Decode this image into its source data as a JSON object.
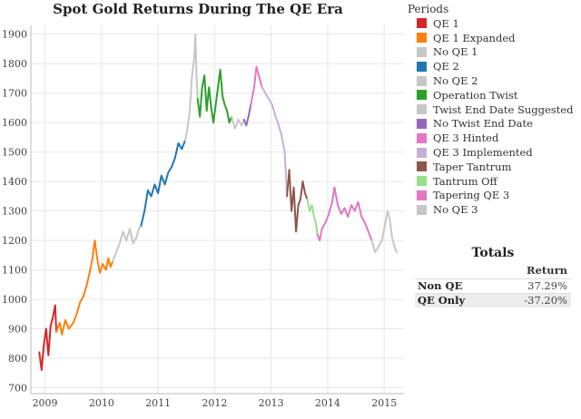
{
  "chart_data": {
    "type": "line",
    "title": "Spot Gold Returns During The QE Era",
    "xlabel": "",
    "ylabel": "",
    "x_ticks": [
      "2009",
      "2010",
      "2011",
      "2012",
      "2013",
      "2014",
      "2015"
    ],
    "y_ticks": [
      "700",
      "800",
      "900",
      "1000",
      "1100",
      "1200",
      "1300",
      "1400",
      "1500",
      "1600",
      "1700",
      "1800",
      "1900"
    ],
    "xlim": [
      2008.75,
      2015.35
    ],
    "ylim": [
      680,
      1930
    ],
    "grid": true,
    "legend_position": "right",
    "series": [
      {
        "name": "QE 1",
        "color": "#d62728",
        "points": [
          [
            2008.9,
            820
          ],
          [
            2008.94,
            760
          ],
          [
            2008.98,
            845
          ],
          [
            2009.02,
            900
          ],
          [
            2009.06,
            810
          ],
          [
            2009.1,
            910
          ],
          [
            2009.14,
            940
          ],
          [
            2009.18,
            980
          ],
          [
            2009.2,
            890
          ]
        ]
      },
      {
        "name": "QE 1 Expanded",
        "color": "#ff7f0e",
        "points": [
          [
            2009.2,
            890
          ],
          [
            2009.26,
            920
          ],
          [
            2009.3,
            880
          ],
          [
            2009.36,
            930
          ],
          [
            2009.42,
            900
          ],
          [
            2009.5,
            920
          ],
          [
            2009.56,
            950
          ],
          [
            2009.62,
            990
          ],
          [
            2009.68,
            1010
          ],
          [
            2009.74,
            1050
          ],
          [
            2009.8,
            1100
          ],
          [
            2009.84,
            1140
          ],
          [
            2009.88,
            1200
          ],
          [
            2009.93,
            1130
          ],
          [
            2009.97,
            1090
          ],
          [
            2010.02,
            1120
          ],
          [
            2010.08,
            1100
          ],
          [
            2010.12,
            1140
          ],
          [
            2010.16,
            1110
          ],
          [
            2010.2,
            1130
          ]
        ]
      },
      {
        "name": "No QE 1",
        "color": "#c7c7c7",
        "points": [
          [
            2010.2,
            1130
          ],
          [
            2010.26,
            1160
          ],
          [
            2010.32,
            1190
          ],
          [
            2010.38,
            1230
          ],
          [
            2010.44,
            1200
          ],
          [
            2010.5,
            1240
          ],
          [
            2010.56,
            1190
          ],
          [
            2010.62,
            1210
          ],
          [
            2010.66,
            1240
          ],
          [
            2010.7,
            1250
          ]
        ]
      },
      {
        "name": "QE 2",
        "color": "#1f77b4",
        "points": [
          [
            2010.7,
            1250
          ],
          [
            2010.76,
            1300
          ],
          [
            2010.82,
            1370
          ],
          [
            2010.88,
            1350
          ],
          [
            2010.94,
            1390
          ],
          [
            2011.0,
            1360
          ],
          [
            2011.06,
            1420
          ],
          [
            2011.12,
            1390
          ],
          [
            2011.18,
            1430
          ],
          [
            2011.24,
            1450
          ],
          [
            2011.3,
            1480
          ],
          [
            2011.36,
            1530
          ],
          [
            2011.42,
            1510
          ],
          [
            2011.48,
            1540
          ]
        ]
      },
      {
        "name": "No QE 2",
        "color": "#c7c7c7",
        "points": [
          [
            2011.48,
            1540
          ],
          [
            2011.52,
            1580
          ],
          [
            2011.56,
            1640
          ],
          [
            2011.6,
            1760
          ],
          [
            2011.64,
            1820
          ],
          [
            2011.66,
            1900
          ],
          [
            2011.68,
            1760
          ],
          [
            2011.7,
            1680
          ]
        ]
      },
      {
        "name": "Operation Twist",
        "color": "#2ca02c",
        "points": [
          [
            2011.7,
            1680
          ],
          [
            2011.74,
            1620
          ],
          [
            2011.78,
            1720
          ],
          [
            2011.82,
            1760
          ],
          [
            2011.86,
            1640
          ],
          [
            2011.9,
            1720
          ],
          [
            2011.94,
            1650
          ],
          [
            2011.98,
            1600
          ],
          [
            2012.02,
            1660
          ],
          [
            2012.06,
            1720
          ],
          [
            2012.1,
            1780
          ],
          [
            2012.14,
            1690
          ],
          [
            2012.18,
            1660
          ],
          [
            2012.22,
            1640
          ],
          [
            2012.26,
            1600
          ],
          [
            2012.3,
            1620
          ]
        ]
      },
      {
        "name": "Twist End Date Suggested",
        "color": "#c7c7c7",
        "points": [
          [
            2012.3,
            1620
          ],
          [
            2012.36,
            1580
          ],
          [
            2012.42,
            1610
          ],
          [
            2012.48,
            1590
          ],
          [
            2012.52,
            1610
          ]
        ]
      },
      {
        "name": "No Twist End Date",
        "color": "#9467bd",
        "points": [
          [
            2012.52,
            1610
          ],
          [
            2012.56,
            1590
          ],
          [
            2012.6,
            1620
          ],
          [
            2012.64,
            1660
          ]
        ]
      },
      {
        "name": "QE 3 Hinted",
        "color": "#e377c2",
        "points": [
          [
            2012.64,
            1660
          ],
          [
            2012.7,
            1720
          ],
          [
            2012.74,
            1790
          ],
          [
            2012.78,
            1760
          ],
          [
            2012.84,
            1720
          ]
        ]
      },
      {
        "name": "QE 3 Implemented",
        "color": "#c5b0d5",
        "points": [
          [
            2012.84,
            1720
          ],
          [
            2012.9,
            1700
          ],
          [
            2012.96,
            1680
          ],
          [
            2013.02,
            1660
          ],
          [
            2013.08,
            1620
          ],
          [
            2013.12,
            1600
          ],
          [
            2013.18,
            1560
          ],
          [
            2013.24,
            1500
          ],
          [
            2013.28,
            1350
          ]
        ]
      },
      {
        "name": "Taper Tantrum",
        "color": "#8c564b",
        "points": [
          [
            2013.28,
            1350
          ],
          [
            2013.32,
            1440
          ],
          [
            2013.36,
            1300
          ],
          [
            2013.4,
            1380
          ],
          [
            2013.44,
            1230
          ],
          [
            2013.48,
            1320
          ],
          [
            2013.52,
            1340
          ],
          [
            2013.56,
            1400
          ],
          [
            2013.6,
            1360
          ],
          [
            2013.64,
            1340
          ]
        ]
      },
      {
        "name": "Tantrum Off",
        "color": "#98df8a",
        "points": [
          [
            2013.64,
            1340
          ],
          [
            2013.68,
            1300
          ],
          [
            2013.72,
            1320
          ],
          [
            2013.76,
            1280
          ],
          [
            2013.8,
            1250
          ],
          [
            2013.82,
            1220
          ]
        ]
      },
      {
        "name": "Tapering QE 3",
        "color": "#e377c2",
        "points": [
          [
            2013.82,
            1220
          ],
          [
            2013.86,
            1200
          ],
          [
            2013.9,
            1240
          ],
          [
            2013.96,
            1260
          ],
          [
            2014.02,
            1290
          ],
          [
            2014.08,
            1330
          ],
          [
            2014.12,
            1380
          ],
          [
            2014.18,
            1320
          ],
          [
            2014.24,
            1290
          ],
          [
            2014.3,
            1310
          ],
          [
            2014.36,
            1280
          ],
          [
            2014.42,
            1320
          ],
          [
            2014.48,
            1300
          ],
          [
            2014.54,
            1330
          ],
          [
            2014.6,
            1280
          ],
          [
            2014.66,
            1260
          ],
          [
            2014.72,
            1230
          ],
          [
            2014.78,
            1200
          ]
        ]
      },
      {
        "name": "No QE 3",
        "color": "#c7c7c7",
        "points": [
          [
            2014.78,
            1200
          ],
          [
            2014.84,
            1160
          ],
          [
            2014.9,
            1180
          ],
          [
            2014.96,
            1200
          ],
          [
            2015.02,
            1260
          ],
          [
            2015.06,
            1300
          ],
          [
            2015.1,
            1270
          ],
          [
            2015.14,
            1210
          ],
          [
            2015.18,
            1180
          ],
          [
            2015.22,
            1160
          ]
        ]
      }
    ]
  },
  "legend": {
    "title": "Periods",
    "items": [
      {
        "label": "QE 1",
        "color": "#d62728"
      },
      {
        "label": "QE 1 Expanded",
        "color": "#ff7f0e"
      },
      {
        "label": "No QE 1",
        "color": "#c7c7c7"
      },
      {
        "label": "QE 2",
        "color": "#1f77b4"
      },
      {
        "label": "No QE 2",
        "color": "#c7c7c7"
      },
      {
        "label": "Operation Twist",
        "color": "#2ca02c"
      },
      {
        "label": "Twist End Date Suggested",
        "color": "#c7c7c7"
      },
      {
        "label": "No Twist End Date",
        "color": "#9467bd"
      },
      {
        "label": "QE 3 Hinted",
        "color": "#e377c2"
      },
      {
        "label": "QE 3 Implemented",
        "color": "#c5b0d5"
      },
      {
        "label": "Taper Tantrum",
        "color": "#8c564b"
      },
      {
        "label": "Tantrum Off",
        "color": "#98df8a"
      },
      {
        "label": "Tapering QE 3",
        "color": "#e377c2"
      },
      {
        "label": "No QE 3",
        "color": "#c7c7c7"
      }
    ]
  },
  "totals": {
    "title": "Totals",
    "column_header": "Return",
    "rows": [
      {
        "label": "Non QE",
        "value": "37.29%"
      },
      {
        "label": "QE Only",
        "value": "-37.20%"
      }
    ]
  }
}
